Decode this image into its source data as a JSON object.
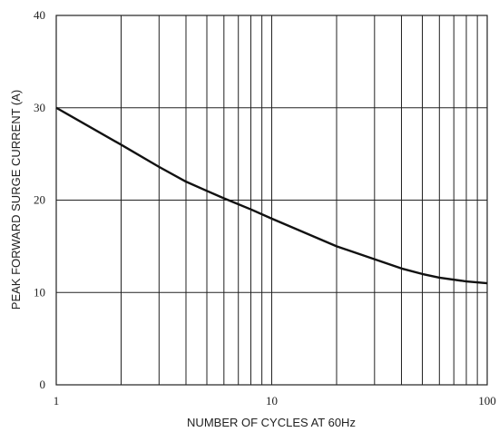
{
  "chart_data": {
    "type": "line",
    "x_label": "NUMBER OF CYCLES AT 60Hz",
    "y_label": "PEAK FORWARD SURGE CURRENT (A)",
    "xscale": "log",
    "x": [
      1,
      2,
      3,
      4,
      5,
      6,
      8,
      10,
      20,
      30,
      40,
      50,
      60,
      80,
      100
    ],
    "series": [
      {
        "color": "#111111",
        "values": [
          30,
          26,
          23.6,
          22,
          21,
          20.2,
          19,
          18,
          15,
          13.6,
          12.6,
          12,
          11.6,
          11.2,
          11
        ]
      }
    ],
    "xlim": [
      1,
      100
    ],
    "xticks": [
      1,
      10,
      100
    ],
    "xminorticks": [
      2,
      3,
      4,
      5,
      6,
      7,
      8,
      9,
      20,
      30,
      40,
      50,
      60,
      70,
      80,
      90
    ],
    "ylim": [
      0,
      40
    ],
    "yticks": [
      0,
      10,
      20,
      30,
      40
    ],
    "grid": true
  }
}
